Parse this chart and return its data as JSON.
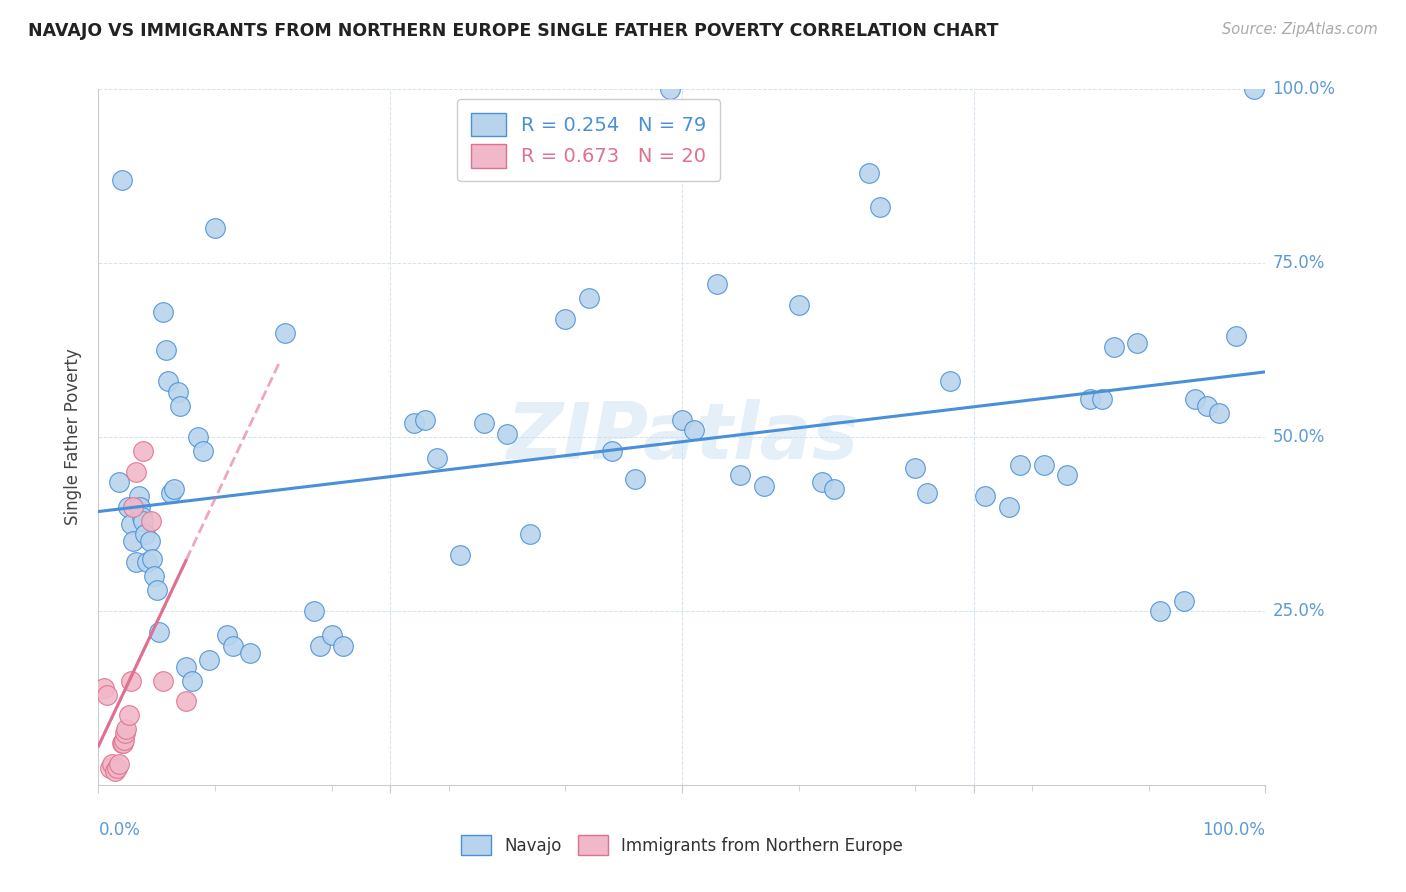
{
  "title": "NAVAJO VS IMMIGRANTS FROM NORTHERN EUROPE SINGLE FATHER POVERTY CORRELATION CHART",
  "source": "Source: ZipAtlas.com",
  "ylabel": "Single Father Poverty",
  "legend_navajo_r": "R = 0.254",
  "legend_navajo_n": "N = 79",
  "legend_immigrants_r": "R = 0.673",
  "legend_immigrants_n": "N = 20",
  "navajo_color": "#b8d4ec",
  "immigrants_color": "#f0b8c8",
  "navajo_line_color": "#4a90d9",
  "immigrants_line_color": "#e07090",
  "watermark": "ZIPatlas",
  "navajo_x": [
    0.018,
    0.02,
    0.025,
    0.028,
    0.03,
    0.032,
    0.035,
    0.036,
    0.037,
    0.038,
    0.04,
    0.042,
    0.044,
    0.046,
    0.048,
    0.05,
    0.052,
    0.055,
    0.058,
    0.06,
    0.062,
    0.065,
    0.068,
    0.07,
    0.075,
    0.08,
    0.085,
    0.09,
    0.095,
    0.1,
    0.11,
    0.115,
    0.13,
    0.16,
    0.185,
    0.19,
    0.2,
    0.21,
    0.27,
    0.28,
    0.29,
    0.31,
    0.33,
    0.35,
    0.37,
    0.4,
    0.42,
    0.44,
    0.46,
    0.49,
    0.5,
    0.51,
    0.53,
    0.55,
    0.57,
    0.6,
    0.62,
    0.63,
    0.66,
    0.67,
    0.7,
    0.71,
    0.73,
    0.76,
    0.78,
    0.79,
    0.81,
    0.83,
    0.85,
    0.86,
    0.87,
    0.89,
    0.91,
    0.93,
    0.94,
    0.95,
    0.96,
    0.975,
    0.99
  ],
  "navajo_y": [
    0.435,
    0.87,
    0.4,
    0.375,
    0.35,
    0.32,
    0.415,
    0.4,
    0.385,
    0.38,
    0.36,
    0.32,
    0.35,
    0.325,
    0.3,
    0.28,
    0.22,
    0.68,
    0.625,
    0.58,
    0.42,
    0.425,
    0.565,
    0.545,
    0.17,
    0.15,
    0.5,
    0.48,
    0.18,
    0.8,
    0.215,
    0.2,
    0.19,
    0.65,
    0.25,
    0.2,
    0.215,
    0.2,
    0.52,
    0.525,
    0.47,
    0.33,
    0.52,
    0.505,
    0.36,
    0.67,
    0.7,
    0.48,
    0.44,
    1.0,
    0.525,
    0.51,
    0.72,
    0.445,
    0.43,
    0.69,
    0.435,
    0.425,
    0.88,
    0.83,
    0.455,
    0.42,
    0.58,
    0.415,
    0.4,
    0.46,
    0.46,
    0.445,
    0.555,
    0.555,
    0.63,
    0.635,
    0.25,
    0.265,
    0.555,
    0.545,
    0.535,
    0.645,
    1.0
  ],
  "immigrants_x": [
    0.005,
    0.007,
    0.01,
    0.012,
    0.014,
    0.016,
    0.018,
    0.02,
    0.021,
    0.022,
    0.023,
    0.024,
    0.026,
    0.028,
    0.03,
    0.032,
    0.038,
    0.045,
    0.055,
    0.075
  ],
  "immigrants_y": [
    0.14,
    0.13,
    0.025,
    0.03,
    0.02,
    0.025,
    0.03,
    0.06,
    0.06,
    0.065,
    0.075,
    0.08,
    0.1,
    0.15,
    0.4,
    0.45,
    0.48,
    0.38,
    0.15,
    0.12
  ],
  "xlim": [
    0.0,
    1.0
  ],
  "ylim": [
    0.0,
    1.0
  ],
  "yticks": [
    0.0,
    0.25,
    0.5,
    0.75,
    1.0
  ],
  "ytick_labels": [
    "",
    "25.0%",
    "50.0%",
    "75.0%",
    "100.0%"
  ],
  "xtick_left": "0.0%",
  "xtick_right": "100.0%",
  "title_fontsize": 12.5,
  "axis_label_color": "#5b9bd5",
  "grid_color": "#d0e4f0",
  "spine_color": "#cccccc"
}
